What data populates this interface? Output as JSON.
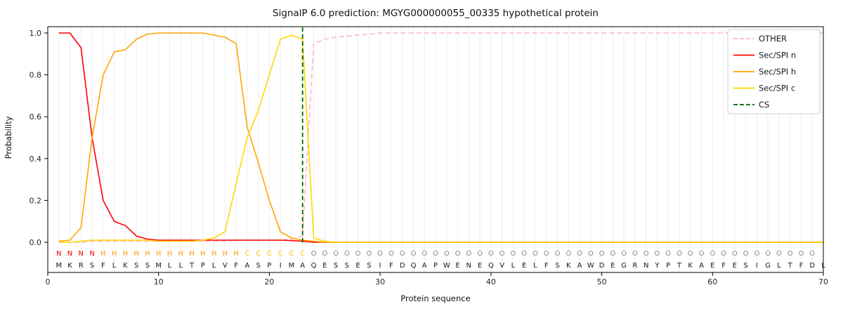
{
  "chart": {
    "title": "SignalP 6.0 prediction: MGYG000000055_00335 hypothetical protein",
    "xlabel": "Protein sequence",
    "ylabel": "Probability"
  },
  "legend": [
    {
      "id": "other",
      "label": "OTHER",
      "color": "#ffb6c1",
      "dash": true
    },
    {
      "id": "n",
      "label": "Sec/SPI n",
      "color": "#ff0000",
      "dash": false
    },
    {
      "id": "h",
      "label": "Sec/SPI h",
      "color": "#ffa500",
      "dash": false
    },
    {
      "id": "c",
      "label": "Sec/SPI c",
      "color": "#ffd700",
      "dash": false
    },
    {
      "id": "cs",
      "label": "CS",
      "color": "#006400",
      "dash": true
    }
  ],
  "chart_data": {
    "type": "line",
    "title": "SignalP 6.0 prediction: MGYG000000055_00335 hypothetical protein",
    "xlabel": "Protein sequence",
    "ylabel": "Probability",
    "xlim": [
      0,
      70
    ],
    "ylim": [
      -0.14,
      1.03
    ],
    "x_start": 1,
    "xticks": [
      0,
      10,
      20,
      30,
      40,
      50,
      60,
      70
    ],
    "yticks": [
      0,
      0.2,
      0.4,
      0.6,
      0.8,
      1.0
    ],
    "ytick_labels": [
      "0.0",
      "0.2",
      "0.4",
      "0.6",
      "0.8",
      "1.0"
    ],
    "grid": "vertical line at every residue position",
    "legend_position": "upper right",
    "cs_position": 23,
    "sequence": "MKRSFLKSSMLLTPLVFASPIMAQESSESIFDQAPWENEQVLELFSKAWDEGRNYPTKAEFESIGLTFDL",
    "region_labels": "NNNNHHHHHHHHHHHHHCCCCCCOOOOOOOOOOOOOOOOOOOOOOOOOOOOOOOOOOOOOOOOOOOOOO",
    "region_colors": {
      "N": "#f40000",
      "H": "#ff9900",
      "C": "#ffce00",
      "O": "#8a8a8a"
    },
    "colors": {
      "grid": "#ececec",
      "cs": "#006400",
      "axis": "#000000",
      "residue_text": "#1a1a1a"
    },
    "series": [
      {
        "id": "other",
        "name": "OTHER",
        "color": "#ffb6c1",
        "dash": true,
        "values": [
          0,
          0,
          0,
          0.005,
          0.005,
          0.005,
          0.005,
          0.005,
          0.005,
          0.005,
          0.005,
          0.005,
          0.005,
          0.005,
          0.005,
          0.005,
          0.01,
          0.01,
          0.01,
          0.01,
          0.01,
          0.015,
          0.03,
          0.95,
          0.97,
          0.98,
          0.985,
          0.99,
          0.995,
          1.0,
          1.0,
          1.0,
          1.0,
          1.0,
          1.0,
          1.0,
          1.0,
          1.0,
          1.0,
          1.0,
          1.0,
          1.0,
          1.0,
          1.0,
          1.0,
          1.0,
          1.0,
          1.0,
          1.0,
          1.0,
          1.0,
          1.0,
          1.0,
          1.0,
          1.0,
          1.0,
          1.0,
          1.0,
          1.0,
          1.0,
          1.0,
          1.0,
          1.0,
          1.0,
          1.0,
          1.0,
          1.0,
          1.0,
          1.0,
          1.0
        ]
      },
      {
        "id": "n",
        "name": "Sec/SPI n",
        "color": "#ff0000",
        "dash": false,
        "values": [
          1.0,
          1.0,
          0.93,
          0.5,
          0.2,
          0.1,
          0.08,
          0.03,
          0.015,
          0.01,
          0.01,
          0.01,
          0.01,
          0.01,
          0.01,
          0.01,
          0.01,
          0.01,
          0.01,
          0.01,
          0.01,
          0.008,
          0.005,
          0,
          0,
          0,
          0,
          0,
          0,
          0,
          0,
          0,
          0,
          0,
          0,
          0,
          0,
          0,
          0,
          0,
          0,
          0,
          0,
          0,
          0,
          0,
          0,
          0,
          0,
          0,
          0,
          0,
          0,
          0,
          0,
          0,
          0,
          0,
          0,
          0,
          0,
          0,
          0,
          0,
          0,
          0,
          0,
          0,
          0,
          0
        ]
      },
      {
        "id": "h",
        "name": "Sec/SPI h",
        "color": "#ffa500",
        "dash": false,
        "values": [
          0.005,
          0.01,
          0.07,
          0.5,
          0.8,
          0.91,
          0.92,
          0.97,
          0.995,
          1.0,
          1.0,
          1.0,
          1.0,
          1.0,
          0.99,
          0.98,
          0.95,
          0.55,
          0.38,
          0.2,
          0.05,
          0.02,
          0.01,
          0.005,
          0,
          0,
          0,
          0,
          0,
          0,
          0,
          0,
          0,
          0,
          0,
          0,
          0,
          0,
          0,
          0,
          0,
          0,
          0,
          0,
          0,
          0,
          0,
          0,
          0,
          0,
          0,
          0,
          0,
          0,
          0,
          0,
          0,
          0,
          0,
          0,
          0,
          0,
          0,
          0,
          0,
          0,
          0,
          0,
          0,
          0
        ]
      },
      {
        "id": "c",
        "name": "Sec/SPI c",
        "color": "#ffd700",
        "dash": false,
        "values": [
          0,
          0,
          0.005,
          0.01,
          0.01,
          0.01,
          0.01,
          0.01,
          0.01,
          0.005,
          0.005,
          0.005,
          0.005,
          0.01,
          0.02,
          0.05,
          0.28,
          0.5,
          0.63,
          0.8,
          0.97,
          0.99,
          0.97,
          0.02,
          0.005,
          0,
          0,
          0,
          0,
          0,
          0,
          0,
          0,
          0,
          0,
          0,
          0,
          0,
          0,
          0,
          0,
          0,
          0,
          0,
          0,
          0,
          0,
          0,
          0,
          0,
          0,
          0,
          0,
          0,
          0,
          0,
          0,
          0,
          0,
          0,
          0,
          0,
          0,
          0,
          0,
          0,
          0,
          0,
          0,
          0
        ]
      }
    ]
  }
}
